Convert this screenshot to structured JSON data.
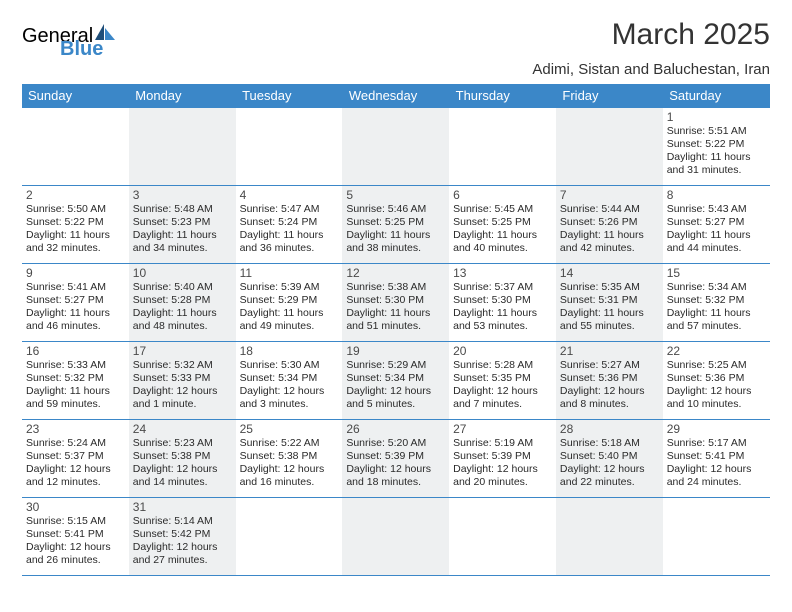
{
  "logo": {
    "text1": "General",
    "text2": "Blue"
  },
  "title": "March 2025",
  "subtitle": "Adimi, Sistan and Baluchestan, Iran",
  "colors": {
    "header_bg": "#3b87c8",
    "header_text": "#ffffff",
    "alt_row_bg": "#eef0f1",
    "border": "#3b87c8",
    "page_bg": "#ffffff"
  },
  "weekdays": [
    "Sunday",
    "Monday",
    "Tuesday",
    "Wednesday",
    "Thursday",
    "Friday",
    "Saturday"
  ],
  "weeks": [
    [
      null,
      null,
      null,
      null,
      null,
      null,
      {
        "d": "1",
        "sr": "5:51 AM",
        "ss": "5:22 PM",
        "dl": "11 hours and 31 minutes."
      }
    ],
    [
      {
        "d": "2",
        "sr": "5:50 AM",
        "ss": "5:22 PM",
        "dl": "11 hours and 32 minutes."
      },
      {
        "d": "3",
        "sr": "5:48 AM",
        "ss": "5:23 PM",
        "dl": "11 hours and 34 minutes."
      },
      {
        "d": "4",
        "sr": "5:47 AM",
        "ss": "5:24 PM",
        "dl": "11 hours and 36 minutes."
      },
      {
        "d": "5",
        "sr": "5:46 AM",
        "ss": "5:25 PM",
        "dl": "11 hours and 38 minutes."
      },
      {
        "d": "6",
        "sr": "5:45 AM",
        "ss": "5:25 PM",
        "dl": "11 hours and 40 minutes."
      },
      {
        "d": "7",
        "sr": "5:44 AM",
        "ss": "5:26 PM",
        "dl": "11 hours and 42 minutes."
      },
      {
        "d": "8",
        "sr": "5:43 AM",
        "ss": "5:27 PM",
        "dl": "11 hours and 44 minutes."
      }
    ],
    [
      {
        "d": "9",
        "sr": "5:41 AM",
        "ss": "5:27 PM",
        "dl": "11 hours and 46 minutes."
      },
      {
        "d": "10",
        "sr": "5:40 AM",
        "ss": "5:28 PM",
        "dl": "11 hours and 48 minutes."
      },
      {
        "d": "11",
        "sr": "5:39 AM",
        "ss": "5:29 PM",
        "dl": "11 hours and 49 minutes."
      },
      {
        "d": "12",
        "sr": "5:38 AM",
        "ss": "5:30 PM",
        "dl": "11 hours and 51 minutes."
      },
      {
        "d": "13",
        "sr": "5:37 AM",
        "ss": "5:30 PM",
        "dl": "11 hours and 53 minutes."
      },
      {
        "d": "14",
        "sr": "5:35 AM",
        "ss": "5:31 PM",
        "dl": "11 hours and 55 minutes."
      },
      {
        "d": "15",
        "sr": "5:34 AM",
        "ss": "5:32 PM",
        "dl": "11 hours and 57 minutes."
      }
    ],
    [
      {
        "d": "16",
        "sr": "5:33 AM",
        "ss": "5:32 PM",
        "dl": "11 hours and 59 minutes."
      },
      {
        "d": "17",
        "sr": "5:32 AM",
        "ss": "5:33 PM",
        "dl": "12 hours and 1 minute."
      },
      {
        "d": "18",
        "sr": "5:30 AM",
        "ss": "5:34 PM",
        "dl": "12 hours and 3 minutes."
      },
      {
        "d": "19",
        "sr": "5:29 AM",
        "ss": "5:34 PM",
        "dl": "12 hours and 5 minutes."
      },
      {
        "d": "20",
        "sr": "5:28 AM",
        "ss": "5:35 PM",
        "dl": "12 hours and 7 minutes."
      },
      {
        "d": "21",
        "sr": "5:27 AM",
        "ss": "5:36 PM",
        "dl": "12 hours and 8 minutes."
      },
      {
        "d": "22",
        "sr": "5:25 AM",
        "ss": "5:36 PM",
        "dl": "12 hours and 10 minutes."
      }
    ],
    [
      {
        "d": "23",
        "sr": "5:24 AM",
        "ss": "5:37 PM",
        "dl": "12 hours and 12 minutes."
      },
      {
        "d": "24",
        "sr": "5:23 AM",
        "ss": "5:38 PM",
        "dl": "12 hours and 14 minutes."
      },
      {
        "d": "25",
        "sr": "5:22 AM",
        "ss": "5:38 PM",
        "dl": "12 hours and 16 minutes."
      },
      {
        "d": "26",
        "sr": "5:20 AM",
        "ss": "5:39 PM",
        "dl": "12 hours and 18 minutes."
      },
      {
        "d": "27",
        "sr": "5:19 AM",
        "ss": "5:39 PM",
        "dl": "12 hours and 20 minutes."
      },
      {
        "d": "28",
        "sr": "5:18 AM",
        "ss": "5:40 PM",
        "dl": "12 hours and 22 minutes."
      },
      {
        "d": "29",
        "sr": "5:17 AM",
        "ss": "5:41 PM",
        "dl": "12 hours and 24 minutes."
      }
    ],
    [
      {
        "d": "30",
        "sr": "5:15 AM",
        "ss": "5:41 PM",
        "dl": "12 hours and 26 minutes."
      },
      {
        "d": "31",
        "sr": "5:14 AM",
        "ss": "5:42 PM",
        "dl": "12 hours and 27 minutes."
      },
      null,
      null,
      null,
      null,
      null
    ]
  ],
  "labels": {
    "sunrise": "Sunrise: ",
    "sunset": "Sunset: ",
    "daylight": "Daylight: "
  }
}
